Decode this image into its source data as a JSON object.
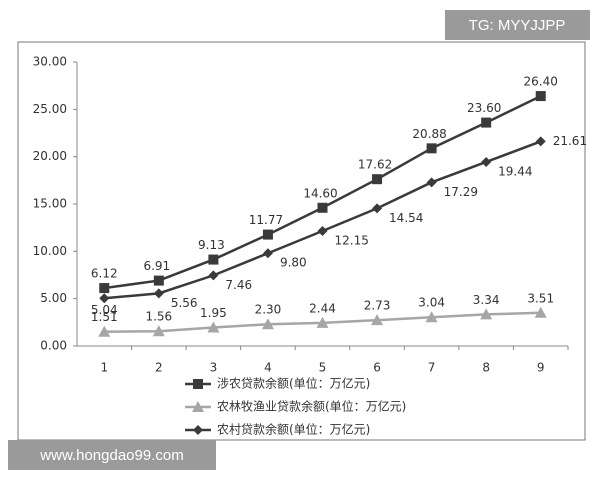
{
  "chart_data": {
    "type": "line",
    "categories": [
      "1",
      "2",
      "3",
      "4",
      "5",
      "6",
      "7",
      "8",
      "9"
    ],
    "series": [
      {
        "name": "涉农贷款余额(单位：万亿元)",
        "color": "#3a3a3a",
        "marker": "square",
        "values": [
          6.12,
          6.91,
          9.13,
          11.77,
          14.6,
          17.62,
          20.88,
          23.6,
          26.4
        ],
        "value_labels": [
          "6.12",
          "6.91",
          "9.13",
          "11.77",
          "14.60",
          "17.62",
          "20.88",
          "23.60",
          "26.40"
        ]
      },
      {
        "name": "农林牧渔业贷款余额(单位：万亿元)",
        "color": "#a6a6a6",
        "marker": "triangle",
        "values": [
          1.51,
          1.56,
          1.95,
          2.3,
          2.44,
          2.73,
          3.04,
          3.34,
          3.51
        ],
        "value_labels": [
          "1.51",
          "1.56",
          "1.95",
          "2.30",
          "2.44",
          "2.73",
          "3.04",
          "3.34",
          "3.51"
        ]
      },
      {
        "name": "农村贷款余额(单位：万亿元)",
        "color": "#3a3a3a",
        "marker": "diamond",
        "values": [
          5.04,
          5.56,
          7.46,
          9.8,
          12.15,
          14.54,
          17.29,
          19.44,
          21.61
        ],
        "value_labels": [
          "5.04",
          "5.56",
          "7.46",
          "9.80",
          "12.15",
          "14.54",
          "17.29",
          "19.44",
          "21.61"
        ]
      }
    ],
    "ylim": [
      0,
      30
    ],
    "yticks": [
      {
        "value": 0,
        "label": "0.00"
      },
      {
        "value": 5,
        "label": "5.00"
      },
      {
        "value": 10,
        "label": "10.00"
      },
      {
        "value": 15,
        "label": "15.00"
      },
      {
        "value": 20,
        "label": "20.00"
      },
      {
        "value": 25,
        "label": "25.00"
      },
      {
        "value": 30,
        "label": "30.00"
      }
    ],
    "grid": false,
    "annotations": [
      "TG: MYYJJPP",
      "www.hongdao99.com"
    ]
  }
}
